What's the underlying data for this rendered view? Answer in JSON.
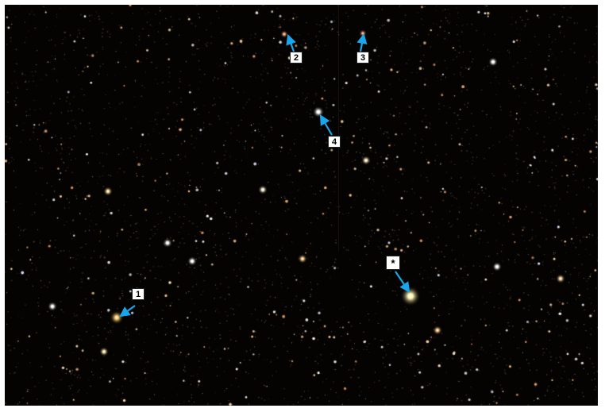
{
  "image": {
    "background_color": "#050302",
    "arrow_color": "#1aa6ea",
    "highlighted_star_color": "#fff3b0"
  },
  "markers": [
    {
      "id": "marker-1",
      "label": "1"
    },
    {
      "id": "marker-2",
      "label": "2"
    },
    {
      "id": "marker-3",
      "label": "3"
    },
    {
      "id": "marker-4",
      "label": "4"
    },
    {
      "id": "marker-star",
      "label": "*"
    }
  ]
}
